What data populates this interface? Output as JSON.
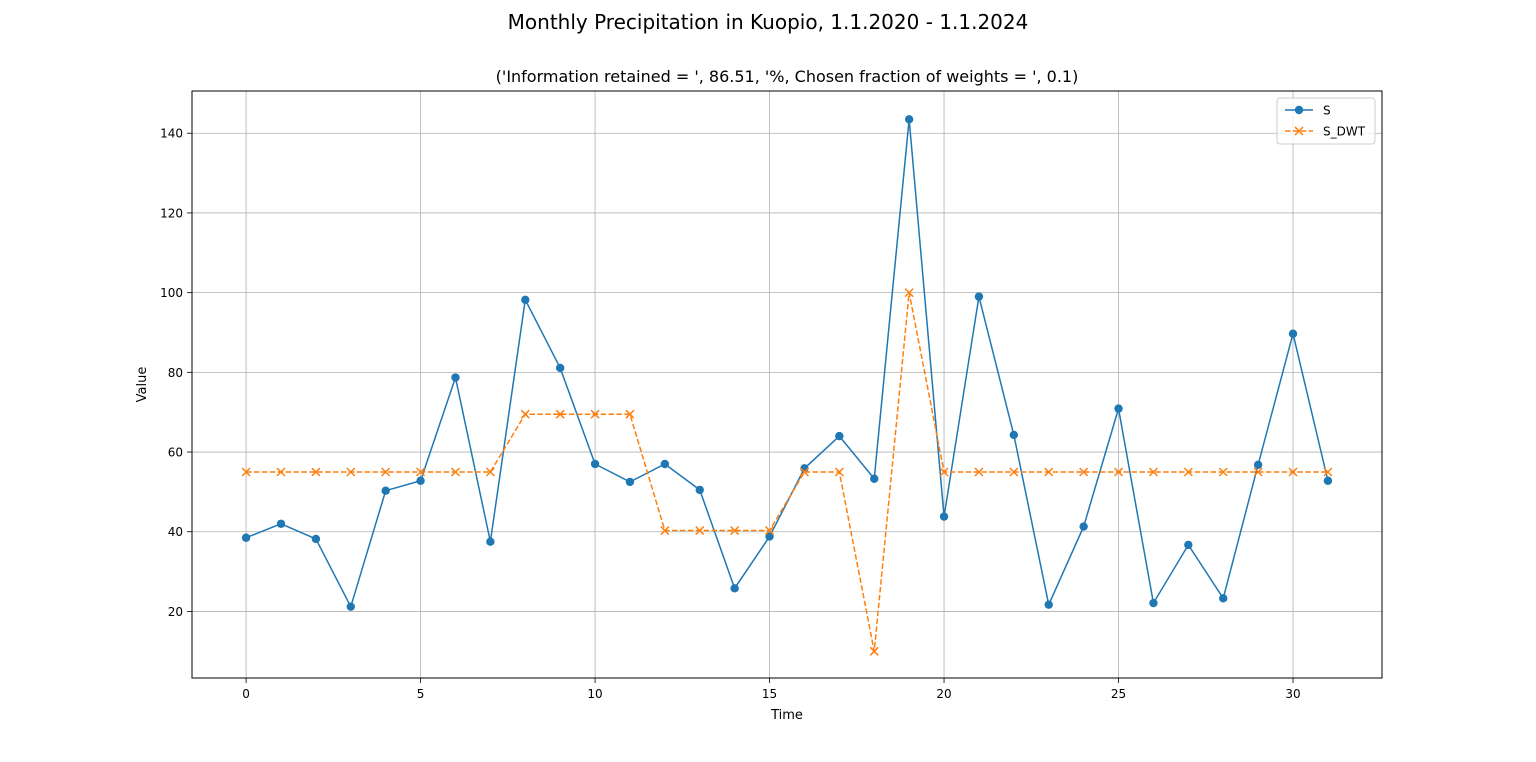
{
  "figure": {
    "suptitle": "Monthly Precipitation in Kuopio, 1.1.2020 - 1.1.2024"
  },
  "chart_data": {
    "type": "line",
    "title": "('Information retained = ', 86.51, '%, Chosen fraction of weights = ', 0.1)",
    "xlabel": "Time",
    "ylabel": "Value",
    "xlim": [
      -1.55,
      32.55
    ],
    "ylim": [
      3.3,
      150.6
    ],
    "xticks": [
      0,
      5,
      10,
      15,
      20,
      25,
      30
    ],
    "yticks": [
      20,
      40,
      60,
      80,
      100,
      120,
      140
    ],
    "grid": true,
    "legend_position": "top-right",
    "x": [
      0,
      1,
      2,
      3,
      4,
      5,
      6,
      7,
      8,
      9,
      10,
      11,
      12,
      13,
      14,
      15,
      16,
      17,
      18,
      19,
      20,
      21,
      22,
      23,
      24,
      25,
      26,
      27,
      28,
      29,
      30,
      31
    ],
    "series": [
      {
        "name": "S",
        "color": "#1f77b4",
        "linestyle": "solid",
        "marker": "circle",
        "values": [
          38.5,
          42.0,
          38.2,
          21.2,
          50.3,
          52.8,
          78.7,
          37.5,
          98.2,
          81.1,
          57.0,
          52.5,
          57.0,
          50.5,
          25.8,
          38.8,
          55.9,
          64.0,
          53.3,
          143.5,
          43.8,
          99.0,
          64.3,
          21.7,
          41.3,
          70.9,
          22.1,
          36.7,
          23.3,
          56.8,
          89.7,
          52.8
        ]
      },
      {
        "name": "S_DWT",
        "color": "#ff7f0e",
        "linestyle": "dashed",
        "marker": "x",
        "values": [
          55.0,
          55.0,
          55.0,
          55.0,
          55.0,
          55.0,
          55.0,
          55.0,
          69.5,
          69.5,
          69.5,
          69.5,
          40.3,
          40.3,
          40.3,
          40.3,
          55.0,
          55.0,
          10.0,
          100.0,
          55.0,
          55.0,
          55.0,
          55.0,
          55.0,
          55.0,
          55.0,
          55.0,
          55.0,
          55.0,
          55.0,
          55.0
        ]
      }
    ]
  }
}
